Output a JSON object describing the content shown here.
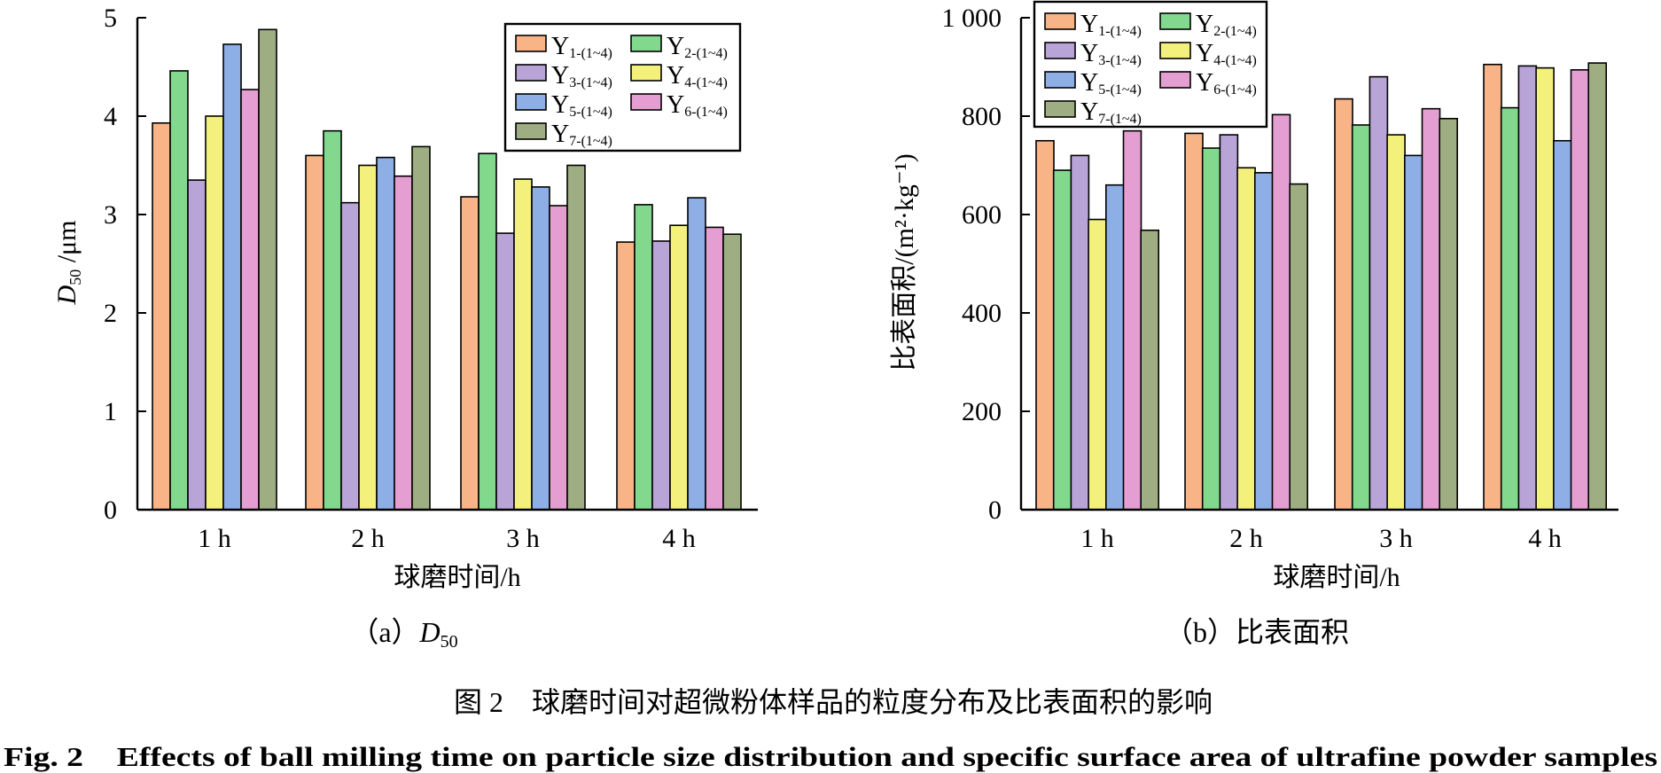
{
  "figure": {
    "caption_cn": "图 2　球磨时间对超微粉体样品的粒度分布及比表面积的影响",
    "caption_en": "Fig. 2　Effects of ball milling time on particle size distribution and specific surface area of ultrafine powder samples"
  },
  "colors": {
    "Y1": "#f8b486",
    "Y2": "#82d88c",
    "Y3": "#b9a4d8",
    "Y4": "#f4f07c",
    "Y5": "#8eaee6",
    "Y6": "#e49ed2",
    "Y7": "#9eae82"
  },
  "legend_labels": [
    {
      "main": "Y",
      "sub": "1-(1~4)",
      "color": "Y1"
    },
    {
      "main": "Y",
      "sub": "2-(1~4)",
      "color": "Y2"
    },
    {
      "main": "Y",
      "sub": "3-(1~4)",
      "color": "Y3"
    },
    {
      "main": "Y",
      "sub": "4-(1~4)",
      "color": "Y4"
    },
    {
      "main": "Y",
      "sub": "5-(1~4)",
      "color": "Y5"
    },
    {
      "main": "Y",
      "sub": "6-(1~4)",
      "color": "Y6"
    },
    {
      "main": "Y",
      "sub": "7-(1~4)",
      "color": "Y7"
    }
  ],
  "chart_data": [
    {
      "type": "bar",
      "sub_caption": "（a）D50",
      "sub_caption_prefix": "（a）",
      "sub_caption_var": "D",
      "sub_caption_sub": "50",
      "xlabel": "球磨时间/h",
      "ylabel_var": "D",
      "ylabel_sub": "50",
      "ylabel_unit": " /μm",
      "ylim": [
        0,
        5
      ],
      "yticks": [
        0,
        1,
        2,
        3,
        4,
        5
      ],
      "ytick_labels": [
        "0",
        "1",
        "2",
        "3",
        "4",
        "5"
      ],
      "categories": [
        "1 h",
        "2 h",
        "3 h",
        "4 h"
      ],
      "legend_position": "top-right",
      "series": [
        {
          "name": "Y1-(1~4)",
          "values": [
            3.93,
            3.6,
            3.18,
            2.72
          ]
        },
        {
          "name": "Y2-(1~4)",
          "values": [
            4.46,
            3.85,
            3.62,
            3.1
          ]
        },
        {
          "name": "Y3-(1~4)",
          "values": [
            3.35,
            3.12,
            2.81,
            2.73
          ]
        },
        {
          "name": "Y4-(1~4)",
          "values": [
            4.0,
            3.5,
            3.36,
            2.89
          ]
        },
        {
          "name": "Y5-(1~4)",
          "values": [
            4.73,
            3.58,
            3.28,
            3.17
          ]
        },
        {
          "name": "Y6-(1~4)",
          "values": [
            4.27,
            3.39,
            3.09,
            2.87
          ]
        },
        {
          "name": "Y7-(1~4)",
          "values": [
            4.88,
            3.69,
            3.5,
            2.8
          ]
        }
      ]
    },
    {
      "type": "bar",
      "sub_caption": "（b）比表面积",
      "xlabel": "球磨时间/h",
      "ylabel": "比表面积/(m²·kg⁻¹)",
      "ylim": [
        0,
        1000
      ],
      "yticks": [
        0,
        200,
        400,
        600,
        800,
        1000
      ],
      "ytick_labels": [
        "0",
        "200",
        "400",
        "600",
        "800",
        "1 000"
      ],
      "categories": [
        "1 h",
        "2 h",
        "3 h",
        "4 h"
      ],
      "legend_position": "top-left",
      "series": [
        {
          "name": "Y1-(1~4)",
          "values": [
            750,
            765,
            835,
            905
          ]
        },
        {
          "name": "Y2-(1~4)",
          "values": [
            690,
            735,
            782,
            817
          ]
        },
        {
          "name": "Y3-(1~4)",
          "values": [
            720,
            762,
            880,
            902
          ]
        },
        {
          "name": "Y4-(1~4)",
          "values": [
            590,
            695,
            762,
            898
          ]
        },
        {
          "name": "Y5-(1~4)",
          "values": [
            660,
            685,
            720,
            750
          ]
        },
        {
          "name": "Y6-(1~4)",
          "values": [
            770,
            803,
            815,
            894
          ]
        },
        {
          "name": "Y7-(1~4)",
          "values": [
            568,
            662,
            795,
            908
          ]
        }
      ]
    }
  ]
}
